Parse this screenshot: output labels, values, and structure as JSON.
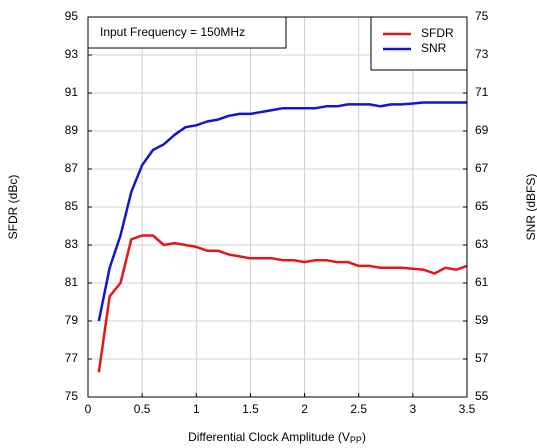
{
  "chart_data": {
    "type": "line",
    "annotation": "Input Frequency = 150MHz",
    "x_label": [
      "Differential Clock Amplitude (V",
      "PP",
      ")"
    ],
    "y_label": "SFDR (dBc)",
    "y2_label": "SNR (dBFS)",
    "x": [
      0.1,
      0.2,
      0.3,
      0.4,
      0.5,
      0.6,
      0.7,
      0.8,
      0.9,
      1.0,
      1.1,
      1.2,
      1.3,
      1.4,
      1.5,
      1.6,
      1.7,
      1.8,
      1.9,
      2.0,
      2.1,
      2.2,
      2.3,
      2.4,
      2.5,
      2.6,
      2.7,
      2.8,
      2.9,
      3.0,
      3.1,
      3.2,
      3.3,
      3.4,
      3.5
    ],
    "series": [
      {
        "name": "SFDR",
        "color": "#e8141a",
        "values": [
          76.3,
          80.3,
          81.0,
          83.3,
          83.5,
          83.5,
          83.0,
          83.1,
          83.0,
          82.9,
          82.7,
          82.7,
          82.5,
          82.4,
          82.3,
          82.3,
          82.3,
          82.2,
          82.2,
          82.1,
          82.2,
          82.2,
          82.1,
          82.1,
          81.9,
          81.9,
          81.8,
          81.8,
          81.8,
          81.75,
          81.7,
          81.5,
          81.8,
          81.7,
          81.9
        ]
      },
      {
        "name": "SNR",
        "color": "#1414d2",
        "axis": "y2",
        "values": [
          59.0,
          61.8,
          63.5,
          65.8,
          67.2,
          68.0,
          68.3,
          68.8,
          69.2,
          69.3,
          69.5,
          69.6,
          69.8,
          69.9,
          69.9,
          70.0,
          70.1,
          70.2,
          70.2,
          70.2,
          70.2,
          70.3,
          70.3,
          70.4,
          70.4,
          70.4,
          70.3,
          70.4,
          70.4,
          70.45,
          70.5,
          70.5,
          70.5,
          70.5,
          70.5
        ]
      }
    ],
    "xlim": [
      0,
      3.5
    ],
    "xticks": [
      0,
      0.5,
      1,
      1.5,
      2,
      2.5,
      3,
      3.5
    ],
    "ylim": [
      75,
      95
    ],
    "yticks": [
      75,
      77,
      79,
      81,
      83,
      85,
      87,
      89,
      91,
      93,
      95
    ],
    "y2lim": [
      55,
      75
    ],
    "y2ticks": [
      55,
      57,
      59,
      61,
      63,
      65,
      67,
      69,
      71,
      73,
      75
    ],
    "grid": true,
    "legend": "upper right"
  }
}
